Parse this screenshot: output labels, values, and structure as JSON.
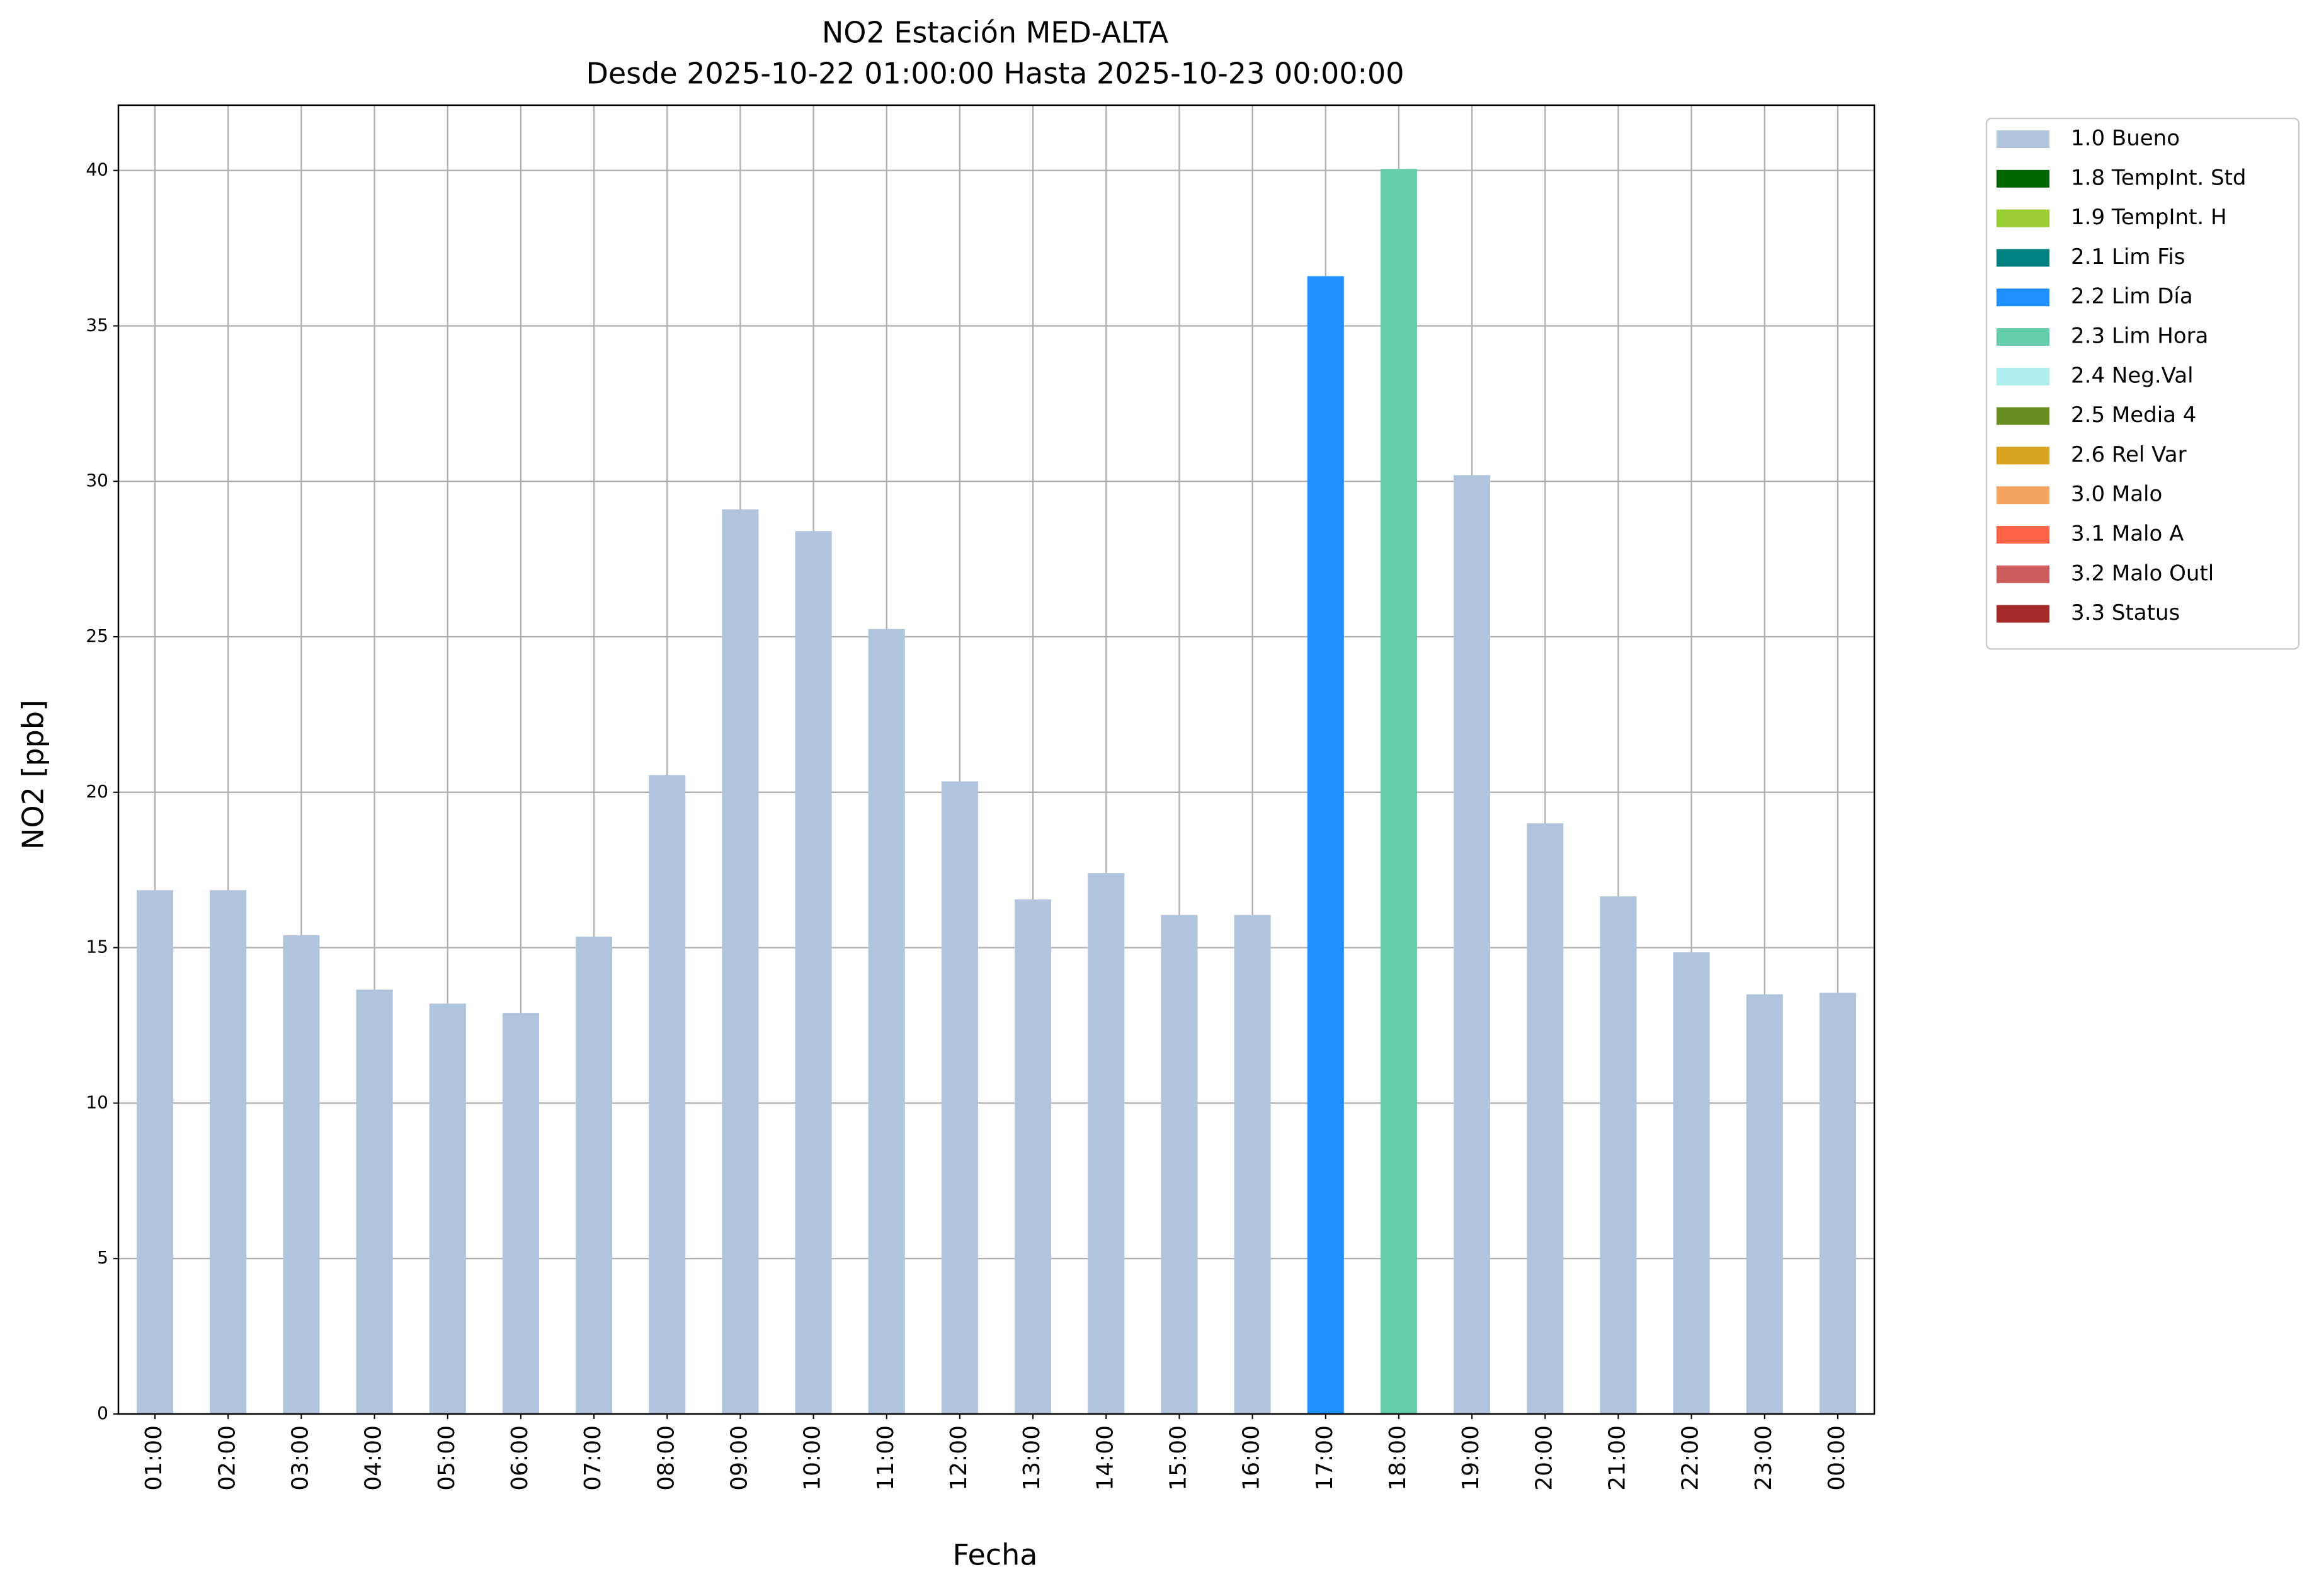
{
  "chart_data": {
    "type": "stacked_bar",
    "title": "NO2 Estación MED-ALTA",
    "subtitle": "Desde 2025-10-22 01:00:00 Hasta 2025-10-23 00:00:00",
    "x_label": "Fecha",
    "y_label": "NO2 [ppb]",
    "categories": [
      "01:00",
      "02:00",
      "03:00",
      "04:00",
      "05:00",
      "06:00",
      "07:00",
      "08:00",
      "09:00",
      "10:00",
      "11:00",
      "12:00",
      "13:00",
      "14:00",
      "15:00",
      "16:00",
      "17:00",
      "18:00",
      "19:00",
      "20:00",
      "21:00",
      "22:00",
      "23:00",
      "00:00"
    ],
    "series": [
      {
        "name": "1.0 Bueno",
        "color": "#b0c4de",
        "values": [
          16.85,
          16.85,
          15.4,
          13.65,
          13.2,
          12.9,
          15.35,
          20.55,
          29.1,
          28.4,
          25.25,
          20.35,
          16.55,
          17.4,
          16.05,
          16.05,
          null,
          null,
          30.2,
          19.0,
          16.65,
          14.85,
          13.5,
          13.55
        ]
      },
      {
        "name": "1.8 TempInt. Std",
        "color": "#006400",
        "values": [
          null,
          null,
          null,
          null,
          null,
          null,
          null,
          null,
          null,
          null,
          null,
          null,
          null,
          null,
          null,
          null,
          null,
          null,
          null,
          null,
          null,
          null,
          null,
          null
        ]
      },
      {
        "name": "1.9 TempInt. H",
        "color": "#9acd32",
        "values": [
          null,
          null,
          null,
          null,
          null,
          null,
          null,
          null,
          null,
          null,
          null,
          null,
          null,
          null,
          null,
          null,
          null,
          null,
          null,
          null,
          null,
          null,
          null,
          null
        ]
      },
      {
        "name": "2.1 Lim Fis",
        "color": "#008080",
        "values": [
          null,
          null,
          null,
          null,
          null,
          null,
          null,
          null,
          null,
          null,
          null,
          null,
          null,
          null,
          null,
          null,
          null,
          null,
          null,
          null,
          null,
          null,
          null,
          null
        ]
      },
      {
        "name": "2.2 Lim Día",
        "color": "#1e90ff",
        "values": [
          null,
          null,
          null,
          null,
          null,
          null,
          null,
          null,
          null,
          null,
          null,
          null,
          null,
          null,
          null,
          null,
          36.6,
          null,
          null,
          null,
          null,
          null,
          null,
          null
        ]
      },
      {
        "name": "2.3 Lim Hora",
        "color": "#66cdaa",
        "values": [
          null,
          null,
          null,
          null,
          null,
          null,
          null,
          null,
          null,
          null,
          null,
          null,
          null,
          null,
          null,
          null,
          null,
          40.05,
          null,
          null,
          null,
          null,
          null,
          null
        ]
      },
      {
        "name": "2.4 Neg.Val",
        "color": "#afeeee",
        "values": [
          null,
          null,
          null,
          null,
          null,
          null,
          null,
          null,
          null,
          null,
          null,
          null,
          null,
          null,
          null,
          null,
          null,
          null,
          null,
          null,
          null,
          null,
          null,
          null
        ]
      },
      {
        "name": "2.5 Media 4",
        "color": "#6b8e23",
        "values": [
          null,
          null,
          null,
          null,
          null,
          null,
          null,
          null,
          null,
          null,
          null,
          null,
          null,
          null,
          null,
          null,
          null,
          null,
          null,
          null,
          null,
          null,
          null,
          null
        ]
      },
      {
        "name": "2.6 Rel Var",
        "color": "#daa520",
        "values": [
          null,
          null,
          null,
          null,
          null,
          null,
          null,
          null,
          null,
          null,
          null,
          null,
          null,
          null,
          null,
          null,
          null,
          null,
          null,
          null,
          null,
          null,
          null,
          null
        ]
      },
      {
        "name": "3.0 Malo",
        "color": "#f4a460",
        "values": [
          null,
          null,
          null,
          null,
          null,
          null,
          null,
          null,
          null,
          null,
          null,
          null,
          null,
          null,
          null,
          null,
          null,
          null,
          null,
          null,
          null,
          null,
          null,
          null
        ]
      },
      {
        "name": "3.1 Malo A",
        "color": "#ff6347",
        "values": [
          null,
          null,
          null,
          null,
          null,
          null,
          null,
          null,
          null,
          null,
          null,
          null,
          null,
          null,
          null,
          null,
          null,
          null,
          null,
          null,
          null,
          null,
          null,
          null
        ]
      },
      {
        "name": "3.2 Malo Outl",
        "color": "#cd5c5c",
        "values": [
          null,
          null,
          null,
          null,
          null,
          null,
          null,
          null,
          null,
          null,
          null,
          null,
          null,
          null,
          null,
          null,
          null,
          null,
          null,
          null,
          null,
          null,
          null,
          null
        ]
      },
      {
        "name": "3.3 Status",
        "color": "#a52a2a",
        "values": [
          null,
          null,
          null,
          null,
          null,
          null,
          null,
          null,
          null,
          null,
          null,
          null,
          null,
          null,
          null,
          null,
          null,
          null,
          null,
          null,
          null,
          null,
          null,
          null
        ]
      }
    ],
    "ylim": [
      0,
      42.1
    ],
    "yticks": [
      0,
      5,
      10,
      15,
      20,
      25,
      30,
      35,
      40
    ],
    "grid": true,
    "legend": "outside-upper-right"
  }
}
